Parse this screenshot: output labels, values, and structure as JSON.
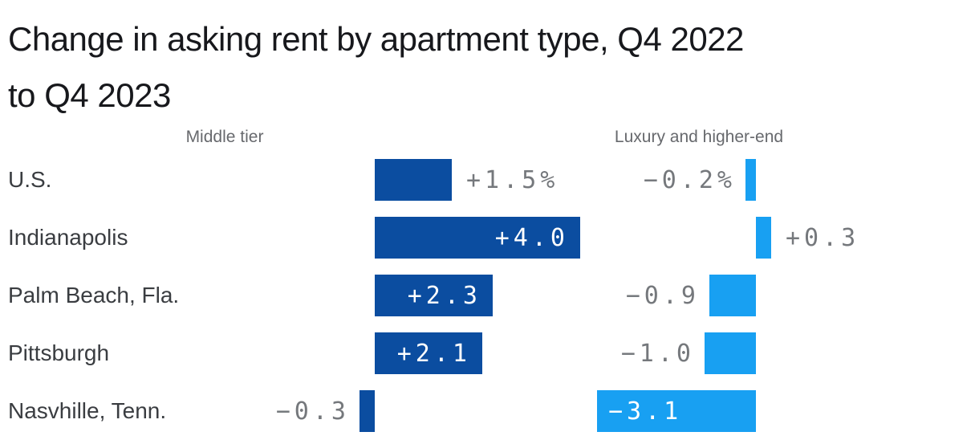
{
  "title_lines": [
    "Change in asking rent by apartment type, Q4 2022",
    "to Q4 2023"
  ],
  "title": "Change in asking rent by apartment type, Q4 2022 to Q4 2023",
  "colors": {
    "middle_tier_bar": "#0b4da0",
    "luxury_bar": "#18a0f2",
    "value_label_outside": "#75787c",
    "value_label_inside": "#ffffff",
    "row_label": "#3a3d41",
    "column_header": "#67696d",
    "title_text": "#17181c",
    "background": "#ffffff"
  },
  "chart_data": {
    "type": "bar",
    "orientation": "horizontal",
    "title": "Change in asking rent by apartment type, Q4 2022 to Q4 2023",
    "categories": [
      "U.S.",
      "Indianapolis",
      "Palm Beach, Fla.",
      "Pittsburgh",
      "Nasvhille, Tenn."
    ],
    "series": [
      {
        "name": "Middle tier",
        "values": [
          1.5,
          4.0,
          2.3,
          2.1,
          -0.3
        ],
        "labels": [
          "+1.5%",
          "+4.0",
          "+2.3",
          "+2.1",
          "−0.3"
        ],
        "color": "#0b4da0"
      },
      {
        "name": "Luxury and higher-end",
        "values": [
          -0.2,
          0.3,
          -0.9,
          -1.0,
          -3.1
        ],
        "labels": [
          "−0.2%",
          "+0.3",
          "−0.9",
          "−1.0",
          "−3.1"
        ],
        "color": "#18a0f2"
      }
    ],
    "unit": "percent change",
    "value_labels_shown": true,
    "axes_shown": false,
    "grid": false,
    "legend_position": "column headers above each panel",
    "xlim_middle_tier": [
      -0.5,
      4.2
    ],
    "xlim_luxury": [
      -3.3,
      0.5
    ]
  }
}
